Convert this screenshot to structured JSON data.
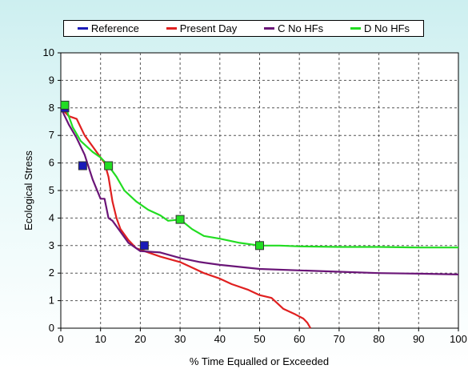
{
  "chart_data": {
    "type": "line",
    "title": "",
    "xlabel": "% Time Equalled or Exceeded",
    "ylabel": "Ecological Stress",
    "xlim": [
      0,
      100
    ],
    "ylim": [
      0,
      10
    ],
    "xticks": [
      "0",
      "10",
      "20",
      "30",
      "40",
      "50",
      "60",
      "70",
      "80",
      "90",
      "100"
    ],
    "yticks": [
      "0",
      "1",
      "2",
      "3",
      "4",
      "5",
      "6",
      "7",
      "8",
      "9",
      "10"
    ],
    "grid": true,
    "legend_position": "top",
    "series": [
      {
        "name": "Reference",
        "color": "#1a1ab8",
        "style": "markers",
        "x": [
          1,
          5.5,
          21
        ],
        "y": [
          8.0,
          5.9,
          3.0
        ]
      },
      {
        "name": "Present Day",
        "color": "#e02020",
        "style": "line",
        "x": [
          0,
          2,
          4,
          5,
          6,
          8,
          10,
          11,
          12,
          13,
          14,
          15,
          17,
          19,
          21,
          25,
          30,
          33,
          36,
          40,
          43,
          47,
          50,
          53,
          56,
          59,
          61,
          62,
          62.8
        ],
        "y": [
          8.0,
          7.7,
          7.6,
          7.3,
          7.0,
          6.6,
          6.2,
          6.0,
          5.5,
          4.6,
          4.0,
          3.6,
          3.2,
          2.9,
          2.8,
          2.6,
          2.4,
          2.2,
          2.0,
          1.8,
          1.6,
          1.4,
          1.2,
          1.1,
          0.7,
          0.5,
          0.35,
          0.2,
          0.0
        ]
      },
      {
        "name": "C No HFs",
        "color": "#6a1577",
        "style": "line",
        "x": [
          0,
          2,
          4,
          6,
          8,
          10,
          11,
          12,
          13,
          14,
          15,
          17,
          20,
          25,
          30,
          35,
          40,
          50,
          60,
          70,
          80,
          90,
          100
        ],
        "y": [
          8.0,
          7.4,
          6.9,
          6.3,
          5.4,
          4.7,
          4.7,
          4.0,
          3.9,
          3.7,
          3.5,
          3.1,
          2.8,
          2.75,
          2.55,
          2.4,
          2.3,
          2.15,
          2.1,
          2.05,
          2.0,
          1.98,
          1.95
        ]
      },
      {
        "name": "D No HFs",
        "color": "#22dd22",
        "style": "line",
        "markers": true,
        "x": [
          1,
          3,
          5,
          8,
          10,
          12,
          14,
          16,
          19,
          22,
          25,
          27,
          30,
          33,
          36,
          40,
          45,
          50,
          55,
          60,
          70,
          80,
          90,
          100
        ],
        "y": [
          8.1,
          7.3,
          6.8,
          6.4,
          6.2,
          5.9,
          5.5,
          5.0,
          4.6,
          4.3,
          4.1,
          3.9,
          3.95,
          3.6,
          3.35,
          3.25,
          3.1,
          3.0,
          3.0,
          2.97,
          2.95,
          2.95,
          2.93,
          2.93
        ],
        "marker_x": [
          1,
          12,
          30,
          50
        ],
        "marker_y": [
          8.1,
          5.9,
          3.95,
          3.0
        ]
      }
    ]
  }
}
